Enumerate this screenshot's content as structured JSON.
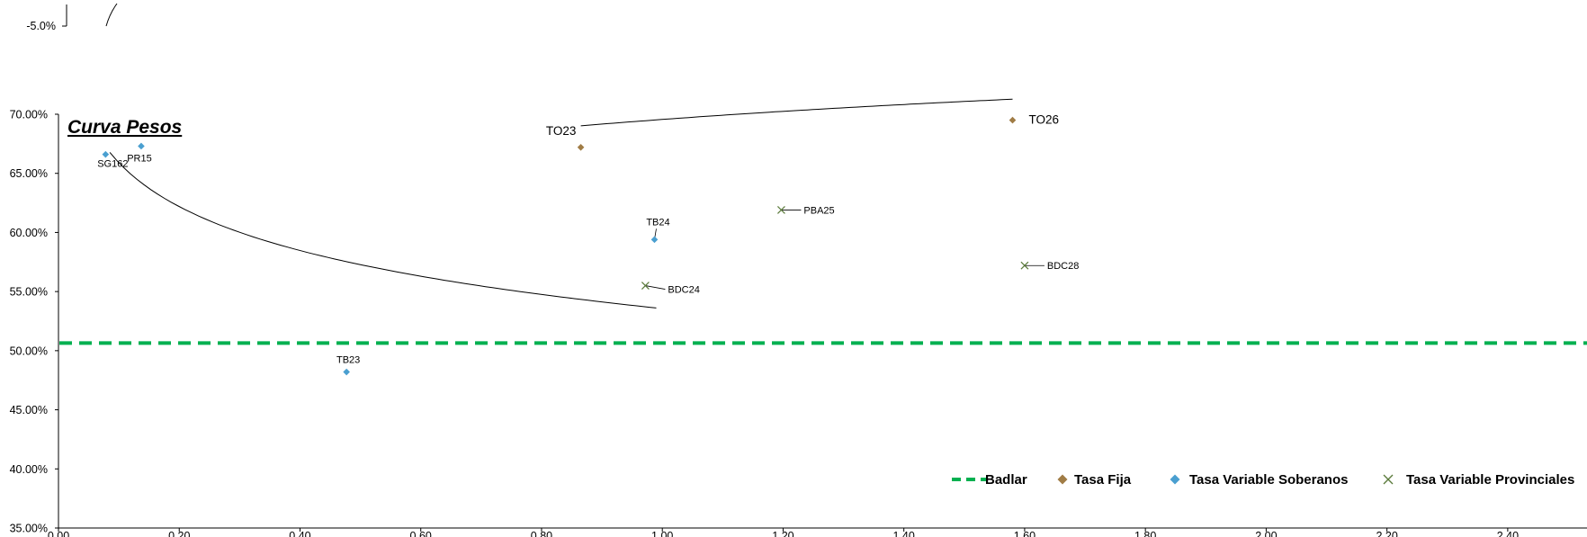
{
  "chart_data": {
    "type": "scatter",
    "title": "Curva  Pesos",
    "xlim": [
      0,
      2.5
    ],
    "ylim": [
      0.35,
      0.7
    ],
    "x_ticks": [
      {
        "value": 0.0,
        "label": "0.00"
      },
      {
        "value": 0.2,
        "label": "0.20"
      },
      {
        "value": 0.4,
        "label": "0.40"
      },
      {
        "value": 0.6,
        "label": "0.60"
      },
      {
        "value": 0.8,
        "label": "0.80"
      },
      {
        "value": 1.0,
        "label": "1.00"
      },
      {
        "value": 1.2,
        "label": "1.20"
      },
      {
        "value": 1.4,
        "label": "1.40"
      },
      {
        "value": 1.6,
        "label": "1.60"
      },
      {
        "value": 1.8,
        "label": "1.80"
      },
      {
        "value": 2.0,
        "label": "2.00"
      },
      {
        "value": 2.2,
        "label": "2.20"
      },
      {
        "value": 2.4,
        "label": "2.40"
      }
    ],
    "y_ticks": [
      {
        "value": 0.35,
        "label": "35.00%"
      },
      {
        "value": 0.4,
        "label": "40.00%"
      },
      {
        "value": 0.45,
        "label": "45.00%"
      },
      {
        "value": 0.5,
        "label": "50.00%"
      },
      {
        "value": 0.55,
        "label": "55.00%"
      },
      {
        "value": 0.6,
        "label": "60.00%"
      },
      {
        "value": 0.65,
        "label": "65.00%"
      },
      {
        "value": 0.7,
        "label": "70.00%"
      }
    ],
    "grid": false,
    "legend_position": "bottom-right",
    "badlar": {
      "name": "Badlar",
      "value": 0.5065,
      "color": "#00b050"
    },
    "series": [
      {
        "name": "Tasa Fija",
        "marker": "diamond",
        "color": "#a07c45",
        "points": [
          {
            "label": "TO23",
            "x": 0.865,
            "y": 0.672
          },
          {
            "label": "TO26",
            "x": 1.58,
            "y": 0.695
          }
        ]
      },
      {
        "name": "Tasa Variable Soberanos",
        "marker": "diamond",
        "color": "#4a9fd0",
        "points": [
          {
            "label": "SG162",
            "x": 0.078,
            "y": 0.666
          },
          {
            "label": "PR15",
            "x": 0.137,
            "y": 0.673
          },
          {
            "label": "TB24",
            "x": 0.987,
            "y": 0.594
          },
          {
            "label": "TB23",
            "x": 0.477,
            "y": 0.482
          }
        ]
      },
      {
        "name": "Tasa Variable Provinciales",
        "marker": "x",
        "color": "#5a7a3a",
        "points": [
          {
            "label": "PBA25",
            "x": 1.197,
            "y": 0.619
          },
          {
            "label": "BDC24",
            "x": 0.972,
            "y": 0.555
          },
          {
            "label": "BDC28",
            "x": 1.6,
            "y": 0.572
          }
        ]
      }
    ],
    "trendlines": [
      {
        "name": "fija",
        "x_start": 0.865,
        "x_end": 1.58,
        "a": 0.6956,
        "b": 0.0375
      },
      {
        "name": "soberanos",
        "x_start": 0.085,
        "x_end": 0.99,
        "a": 0.5356,
        "b": -0.0536
      }
    ],
    "partial_axis": {
      "label": "-5.0%"
    }
  }
}
